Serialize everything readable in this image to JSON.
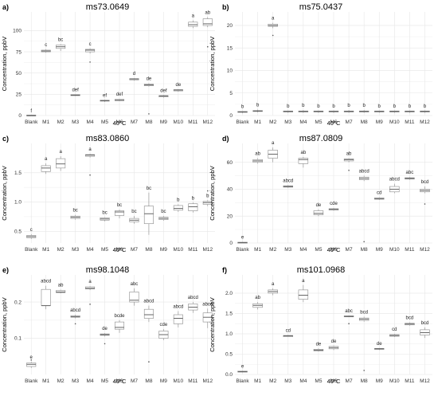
{
  "chart_data": [
    {
      "type": "box",
      "panel_label": "a)",
      "title": "ms73.0649",
      "ylabel": "Concentration, ppbV",
      "xlabel": "40°C",
      "categories": [
        "Blank",
        "M1",
        "M2",
        "M3",
        "M4",
        "M5",
        "M6",
        "M7",
        "M8",
        "M9",
        "M10",
        "M11",
        "M12"
      ],
      "ylim": [
        0,
        122
      ],
      "yticks": [
        0,
        25,
        50,
        75,
        100
      ],
      "grid": true,
      "boxes": [
        {
          "lo": 0,
          "q1": 0,
          "med": 0,
          "q3": 0,
          "hi": 0,
          "sig": "f"
        },
        {
          "lo": 74,
          "q1": 75,
          "med": 76,
          "q3": 77,
          "hi": 78,
          "sig": "c"
        },
        {
          "lo": 76,
          "q1": 79,
          "med": 81,
          "q3": 83,
          "hi": 84,
          "sig": "bc"
        },
        {
          "lo": 23,
          "q1": 23.5,
          "med": 24,
          "q3": 24.5,
          "hi": 25,
          "sig": "def"
        },
        {
          "lo": 73,
          "q1": 75,
          "med": 77,
          "q3": 78,
          "hi": 79,
          "sig": "c",
          "outliers": [
            63
          ]
        },
        {
          "lo": 16,
          "q1": 17,
          "med": 17.5,
          "q3": 18,
          "hi": 18.5,
          "sig": "ef"
        },
        {
          "lo": 17,
          "q1": 17.5,
          "med": 18,
          "q3": 19,
          "hi": 19.5,
          "sig": "def"
        },
        {
          "lo": 41,
          "q1": 42,
          "med": 43,
          "q3": 43.5,
          "hi": 44,
          "sig": "d"
        },
        {
          "lo": 34,
          "q1": 35,
          "med": 36,
          "q3": 37,
          "hi": 38,
          "sig": "de",
          "outliers": [
            2
          ]
        },
        {
          "lo": 21,
          "q1": 22,
          "med": 23,
          "q3": 23.5,
          "hi": 24,
          "sig": "def"
        },
        {
          "lo": 28,
          "q1": 29,
          "med": 30,
          "q3": 30.5,
          "hi": 31,
          "sig": "de"
        },
        {
          "lo": 103,
          "q1": 105,
          "med": 107,
          "q3": 110,
          "hi": 112,
          "sig": "a"
        },
        {
          "lo": 104,
          "q1": 106,
          "med": 108,
          "q3": 114,
          "hi": 116,
          "sig": "ab",
          "outliers": [
            81
          ]
        }
      ]
    },
    {
      "type": "box",
      "panel_label": "b)",
      "title": "ms75.0437",
      "ylabel": "Concentration, ppbV",
      "xlabel": "40°C",
      "categories": [
        "Blank",
        "M1",
        "M2",
        "M3",
        "M4",
        "M5",
        "M6",
        "M7",
        "M8",
        "M9",
        "M10",
        "M11",
        "M12"
      ],
      "ylim": [
        0,
        23
      ],
      "yticks": [
        0,
        5,
        10,
        15,
        20
      ],
      "grid": true,
      "boxes": [
        {
          "lo": 0.5,
          "q1": 0.7,
          "med": 0.8,
          "q3": 0.9,
          "hi": 1.0,
          "sig": "b"
        },
        {
          "lo": 0.7,
          "q1": 0.9,
          "med": 1.0,
          "q3": 1.1,
          "hi": 1.3,
          "sig": "b"
        },
        {
          "lo": 19.4,
          "q1": 19.8,
          "med": 20,
          "q3": 20.3,
          "hi": 20.6,
          "sig": "a",
          "outliers": [
            17.8
          ]
        },
        {
          "lo": 0.6,
          "q1": 0.8,
          "med": 0.9,
          "q3": 1.0,
          "hi": 1.1,
          "sig": "b"
        },
        {
          "lo": 0.6,
          "q1": 0.8,
          "med": 0.9,
          "q3": 1.0,
          "hi": 1.2,
          "sig": "b"
        },
        {
          "lo": 0.6,
          "q1": 0.8,
          "med": 0.9,
          "q3": 1.0,
          "hi": 1.1,
          "sig": "b"
        },
        {
          "lo": 0.6,
          "q1": 0.8,
          "med": 0.9,
          "q3": 1.0,
          "hi": 1.1,
          "sig": "b"
        },
        {
          "lo": 0.6,
          "q1": 0.8,
          "med": 0.9,
          "q3": 1.0,
          "hi": 1.2,
          "sig": "b"
        },
        {
          "lo": 0.6,
          "q1": 0.8,
          "med": 0.9,
          "q3": 1.0,
          "hi": 1.2,
          "sig": "b"
        },
        {
          "lo": 0.6,
          "q1": 0.8,
          "med": 0.9,
          "q3": 1.0,
          "hi": 1.1,
          "sig": "b"
        },
        {
          "lo": 0.6,
          "q1": 0.8,
          "med": 0.9,
          "q3": 1.0,
          "hi": 1.1,
          "sig": "b"
        },
        {
          "lo": 0.6,
          "q1": 0.8,
          "med": 0.9,
          "q3": 1.0,
          "hi": 1.1,
          "sig": "b"
        },
        {
          "lo": 0.6,
          "q1": 0.8,
          "med": 0.9,
          "q3": 1.0,
          "hi": 1.1,
          "sig": "b"
        }
      ]
    },
    {
      "type": "box",
      "panel_label": "c)",
      "title": "ms83.0860",
      "ylabel": "Concentration, ppbV",
      "xlabel": "40°C",
      "categories": [
        "Blank",
        "M1",
        "M2",
        "M3",
        "M4",
        "M5",
        "M6",
        "M7",
        "M8",
        "M9",
        "M10",
        "M11",
        "M12"
      ],
      "ylim": [
        0.3,
        2.0
      ],
      "yticks": [
        0.5,
        1.0,
        1.5
      ],
      "grid": true,
      "boxes": [
        {
          "lo": 0.37,
          "q1": 0.39,
          "med": 0.41,
          "q3": 0.43,
          "hi": 0.45,
          "sig": "c"
        },
        {
          "lo": 1.48,
          "q1": 1.52,
          "med": 1.58,
          "q3": 1.62,
          "hi": 1.66,
          "sig": "a"
        },
        {
          "lo": 1.53,
          "q1": 1.58,
          "med": 1.65,
          "q3": 1.74,
          "hi": 1.78,
          "sig": "a"
        },
        {
          "lo": 0.7,
          "q1": 0.72,
          "med": 0.74,
          "q3": 0.76,
          "hi": 0.78,
          "sig": "bc"
        },
        {
          "lo": 1.76,
          "q1": 1.78,
          "med": 1.8,
          "q3": 1.81,
          "hi": 1.82,
          "sig": "a",
          "outliers": [
            1.46
          ]
        },
        {
          "lo": 0.67,
          "q1": 0.69,
          "med": 0.71,
          "q3": 0.73,
          "hi": 0.74,
          "sig": "bc"
        },
        {
          "lo": 0.72,
          "q1": 0.77,
          "med": 0.83,
          "q3": 0.85,
          "hi": 0.87,
          "sig": "bc"
        },
        {
          "lo": 0.63,
          "q1": 0.66,
          "med": 0.69,
          "q3": 0.72,
          "hi": 0.76,
          "sig": "bc"
        },
        {
          "lo": 0.44,
          "q1": 0.63,
          "med": 0.8,
          "q3": 0.93,
          "hi": 1.16,
          "sig": "bc"
        },
        {
          "lo": 0.68,
          "q1": 0.7,
          "med": 0.72,
          "q3": 0.74,
          "hi": 0.76,
          "sig": "bc"
        },
        {
          "lo": 0.83,
          "q1": 0.86,
          "med": 0.89,
          "q3": 0.94,
          "hi": 0.96,
          "sig": "b"
        },
        {
          "lo": 0.82,
          "q1": 0.85,
          "med": 0.92,
          "q3": 0.97,
          "hi": 0.99,
          "sig": "b"
        },
        {
          "lo": 0.93,
          "q1": 0.96,
          "med": 0.99,
          "q3": 1.01,
          "hi": 1.03,
          "sig": "b",
          "outliers": [
            1.19
          ]
        }
      ]
    },
    {
      "type": "box",
      "panel_label": "d)",
      "title": "ms87.0809",
      "ylabel": "Concentration, ppbV",
      "xlabel": "40°C",
      "categories": [
        "Blank",
        "M1",
        "M2",
        "M3",
        "M4",
        "M5",
        "M6",
        "M7",
        "M8",
        "M9",
        "M10",
        "M11",
        "M12"
      ],
      "ylim": [
        0,
        74
      ],
      "yticks": [
        0,
        20,
        40,
        60
      ],
      "grid": true,
      "boxes": [
        {
          "lo": 0,
          "q1": 0,
          "med": 0.3,
          "q3": 0.5,
          "hi": 0.8,
          "sig": "e"
        },
        {
          "lo": 59,
          "q1": 60,
          "med": 61,
          "q3": 62,
          "hi": 63,
          "sig": "ab"
        },
        {
          "lo": 60,
          "q1": 63,
          "med": 66,
          "q3": 69,
          "hi": 71,
          "sig": "a"
        },
        {
          "lo": 41,
          "q1": 41.5,
          "med": 42,
          "q3": 42.5,
          "hi": 43,
          "sig": "abcd"
        },
        {
          "lo": 56,
          "q1": 59,
          "med": 62,
          "q3": 63,
          "hi": 64,
          "sig": "ab"
        },
        {
          "lo": 20,
          "q1": 21,
          "med": 22,
          "q3": 24,
          "hi": 25,
          "sig": "de"
        },
        {
          "lo": 24,
          "q1": 24.5,
          "med": 25,
          "q3": 25.5,
          "hi": 26,
          "sig": "cde"
        },
        {
          "lo": 60,
          "q1": 61,
          "med": 62,
          "q3": 62.5,
          "hi": 63,
          "sig": "ab",
          "outliers": [
            54
          ]
        },
        {
          "lo": 46,
          "q1": 47,
          "med": 48,
          "q3": 49,
          "hi": 50,
          "sig": "abcd",
          "outliers": [
            1
          ]
        },
        {
          "lo": 32,
          "q1": 32.5,
          "med": 33,
          "q3": 33.5,
          "hi": 34,
          "sig": "cd"
        },
        {
          "lo": 37,
          "q1": 38,
          "med": 40,
          "q3": 42,
          "hi": 44,
          "sig": "abcd"
        },
        {
          "lo": 47,
          "q1": 47.5,
          "med": 48,
          "q3": 48.5,
          "hi": 49,
          "sig": "abc"
        },
        {
          "lo": 37,
          "q1": 38,
          "med": 39,
          "q3": 40,
          "hi": 42,
          "sig": "bcd",
          "outliers": [
            29
          ]
        }
      ]
    },
    {
      "type": "box",
      "panel_label": "e)",
      "title": "ms98.1048",
      "ylabel": "Concentration, ppbV",
      "xlabel": "40°C",
      "categories": [
        "Blank",
        "M1",
        "M2",
        "M3",
        "M4",
        "M5",
        "M6",
        "M7",
        "M8",
        "M9",
        "M10",
        "M11",
        "M12"
      ],
      "ylim": [
        0,
        0.275
      ],
      "yticks": [
        0.1,
        0.2
      ],
      "grid": true,
      "boxes": [
        {
          "lo": 0.018,
          "q1": 0.022,
          "med": 0.028,
          "q3": 0.032,
          "hi": 0.035,
          "sig": "e",
          "outliers": [
            0.04
          ]
        },
        {
          "lo": 0.18,
          "q1": 0.19,
          "med": 0.19,
          "q3": 0.235,
          "hi": 0.245,
          "sig": "abcd"
        },
        {
          "lo": 0.224,
          "q1": 0.226,
          "med": 0.228,
          "q3": 0.232,
          "hi": 0.234,
          "sig": "ab"
        },
        {
          "lo": 0.155,
          "q1": 0.158,
          "med": 0.16,
          "q3": 0.162,
          "hi": 0.165,
          "sig": "abcd",
          "outliers": [
            0.14
          ]
        },
        {
          "lo": 0.233,
          "q1": 0.236,
          "med": 0.238,
          "q3": 0.242,
          "hi": 0.244,
          "sig": "a",
          "outliers": [
            0.194
          ]
        },
        {
          "lo": 0.105,
          "q1": 0.108,
          "med": 0.11,
          "q3": 0.112,
          "hi": 0.114,
          "sig": "de",
          "outliers": [
            0.085
          ]
        },
        {
          "lo": 0.115,
          "q1": 0.125,
          "med": 0.13,
          "q3": 0.145,
          "hi": 0.15,
          "sig": "bcde"
        },
        {
          "lo": 0.19,
          "q1": 0.2,
          "med": 0.205,
          "q3": 0.228,
          "hi": 0.238,
          "sig": "abc"
        },
        {
          "lo": 0.145,
          "q1": 0.155,
          "med": 0.165,
          "q3": 0.18,
          "hi": 0.19,
          "sig": "abcd",
          "outliers": [
            0.035
          ]
        },
        {
          "lo": 0.095,
          "q1": 0.1,
          "med": 0.11,
          "q3": 0.12,
          "hi": 0.125,
          "sig": "cde"
        },
        {
          "lo": 0.13,
          "q1": 0.14,
          "med": 0.155,
          "q3": 0.165,
          "hi": 0.175,
          "sig": "abcd"
        },
        {
          "lo": 0.17,
          "q1": 0.178,
          "med": 0.186,
          "q3": 0.195,
          "hi": 0.2,
          "sig": "abcd"
        },
        {
          "lo": 0.128,
          "q1": 0.145,
          "med": 0.158,
          "q3": 0.17,
          "hi": 0.182,
          "sig": "abcd"
        }
      ]
    },
    {
      "type": "box",
      "panel_label": "f)",
      "title": "ms101.0968",
      "ylabel": "Concentration, ppbV",
      "xlabel": "40°C",
      "categories": [
        "Blank",
        "M1",
        "M2",
        "M3",
        "M4",
        "M5",
        "M6",
        "M7",
        "M8",
        "M9",
        "M10",
        "M11",
        "M12"
      ],
      "ylim": [
        0,
        2.45
      ],
      "yticks": [
        0.0,
        0.5,
        1.0,
        1.5,
        2.0
      ],
      "grid": true,
      "boxes": [
        {
          "lo": 0.05,
          "q1": 0.06,
          "med": 0.07,
          "q3": 0.08,
          "hi": 0.09,
          "sig": "e"
        },
        {
          "lo": 1.6,
          "q1": 1.65,
          "med": 1.7,
          "q3": 1.74,
          "hi": 1.78,
          "sig": "ab"
        },
        {
          "lo": 1.95,
          "q1": 2.0,
          "med": 2.04,
          "q3": 2.08,
          "hi": 2.12,
          "sig": "a"
        },
        {
          "lo": 0.92,
          "q1": 0.93,
          "med": 0.95,
          "q3": 0.96,
          "hi": 0.97,
          "sig": "cd"
        },
        {
          "lo": 1.78,
          "q1": 1.85,
          "med": 1.95,
          "q3": 2.08,
          "hi": 2.2,
          "sig": "a"
        },
        {
          "lo": 0.56,
          "q1": 0.58,
          "med": 0.6,
          "q3": 0.62,
          "hi": 0.64,
          "sig": "de"
        },
        {
          "lo": 0.6,
          "q1": 0.63,
          "med": 0.66,
          "q3": 0.69,
          "hi": 0.71,
          "sig": "de"
        },
        {
          "lo": 1.41,
          "q1": 1.42,
          "med": 1.43,
          "q3": 1.44,
          "hi": 1.45,
          "sig": "abc",
          "outliers": [
            1.25
          ]
        },
        {
          "lo": 1.3,
          "q1": 1.33,
          "med": 1.36,
          "q3": 1.39,
          "hi": 1.42,
          "sig": "bcd",
          "outliers": [
            0.1
          ]
        },
        {
          "lo": 0.6,
          "q1": 0.62,
          "med": 0.63,
          "q3": 0.64,
          "hi": 0.65,
          "sig": "de"
        },
        {
          "lo": 0.92,
          "q1": 0.94,
          "med": 0.96,
          "q3": 0.98,
          "hi": 1.0,
          "sig": "cd"
        },
        {
          "lo": 1.2,
          "q1": 1.22,
          "med": 1.24,
          "q3": 1.26,
          "hi": 1.28,
          "sig": "bcd"
        },
        {
          "lo": 0.9,
          "q1": 0.97,
          "med": 1.03,
          "q3": 1.1,
          "hi": 1.16,
          "sig": "bcd"
        }
      ]
    }
  ]
}
